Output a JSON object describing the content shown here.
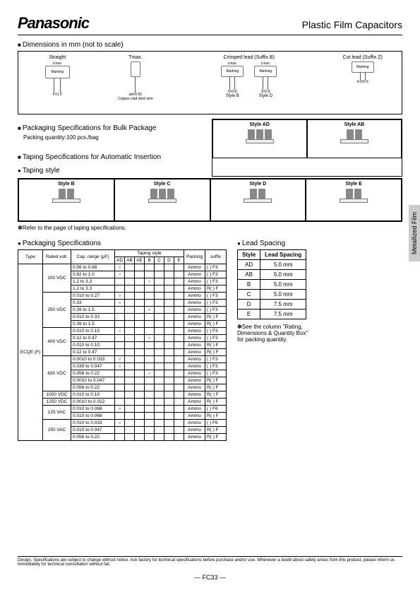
{
  "header": {
    "brand": "Panasonic",
    "title": "Plastic Film Capacitors"
  },
  "side_tab": "Metallized Film",
  "sections": {
    "dimensions": "Dimensions in mm (not to scale)",
    "packaging_bulk": "Packaging Specifications for Bulk Package",
    "packaging_qty": "Packing quantity:100 pcs./bag",
    "taping_spec": "Taping Specifications for Automatic Insertion",
    "taping_style": "Taping style",
    "taping_note": "Refer to the page of taping specifications.",
    "packaging_spec": "Packaging Specifications",
    "lead_spacing": "Lead Spacing"
  },
  "dim_labels": {
    "straight": "Straight",
    "tmax": "Tmax.",
    "crimped": "Crimped lead (Suffix B)",
    "cut": "Cut lead (Suffix Z)",
    "lmax": "Lmax.",
    "marking": "Marking",
    "hmax": "Hmax.",
    "gmax": "Gmax.",
    "f": "F±1.0",
    "min20": "20min.",
    "copper": "Copper-clad steel wire",
    "d": "ød±0.05",
    "styleB": "Style B",
    "styleD": "Style D",
    "s": "S±0.8",
    "l": "L±0.5",
    "tol": "4.0±0.5"
  },
  "style_labels": {
    "AD": "Style AD",
    "AB": "Style AB",
    "B": "Style B",
    "C": "Style C",
    "D": "Style D",
    "E": "Style E"
  },
  "pack_table": {
    "headers": {
      "type": "Type",
      "rated": "Rated volt.",
      "cap_range": "Cap. range (µF)",
      "taping_style": "Taping style",
      "packing": "Packing",
      "suffix": "suffix"
    },
    "tape_cols": [
      "AD",
      "AB",
      "AE",
      "B",
      "C",
      "D",
      "E"
    ],
    "type_val": "ECQE (F)",
    "rows": [
      {
        "volt": "100 VDC",
        "rows": [
          {
            "cap": "0.56 to 0.68",
            "ad": "○",
            "packing": "Ammo",
            "suffix": "(   ) F3"
          },
          {
            "cap": "0.82 to 1.0",
            "ad": "○",
            "packing": "Ammo",
            "suffix": "(   ) F3"
          },
          {
            "cap": "1.2 to 3.3",
            "b": "○",
            "packing": "Ammo",
            "suffix": "(   ) F3"
          },
          {
            "cap": "1.2 to 3.3",
            "packing": "Ammo",
            "suffix": "R(   ) F"
          }
        ]
      },
      {
        "volt": "250 VDC",
        "rows": [
          {
            "cap": "0.010 to 0.27",
            "ad": "○",
            "packing": "Ammo",
            "suffix": "(   ) F3"
          },
          {
            "cap": "0.33",
            "ad": "○",
            "packing": "Ammo",
            "suffix": "(   ) F3"
          },
          {
            "cap": "0.39 to 1.5",
            "b": "○",
            "packing": "Ammo",
            "suffix": "(   ) F3"
          },
          {
            "cap": "0.010 to 0.33",
            "packing": "Ammo",
            "suffix": "R(   ) F"
          },
          {
            "cap": "0.39 to 1.5",
            "packing": "Ammo",
            "suffix": "R(   ) F"
          }
        ]
      },
      {
        "volt": "400 VDC",
        "rows": [
          {
            "cap": "0.010 to 0.10",
            "ad": "○",
            "packing": "Ammo",
            "suffix": "(   ) F3"
          },
          {
            "cap": "0.12 to 0.47",
            "b": "○",
            "packing": "Ammo",
            "suffix": "(   ) F3"
          },
          {
            "cap": "0.010 to 0.10",
            "packing": "Ammo",
            "suffix": "R(   ) F"
          },
          {
            "cap": "0.12 to 0.47",
            "packing": "Ammo",
            "suffix": "R(   ) F"
          }
        ]
      },
      {
        "volt": "630 VDC",
        "rows": [
          {
            "cap": "0.0010 to 0.033",
            "ad": "○",
            "packing": "Ammo",
            "suffix": "(   ) F3"
          },
          {
            "cap": "0.039 to 0.047",
            "ad": "○",
            "packing": "Ammo",
            "suffix": "(   ) F3"
          },
          {
            "cap": "0.056 to 0.22",
            "b": "○",
            "packing": "Ammo",
            "suffix": "(   ) F3"
          },
          {
            "cap": "0.0010 to 0.047",
            "packing": "Ammo",
            "suffix": "R(   ) F"
          },
          {
            "cap": "0.056 to 0.22",
            "packing": "Ammo",
            "suffix": "R(   ) F"
          }
        ]
      },
      {
        "volt": "1000 VDC",
        "rows": [
          {
            "cap": "0.010 to 0.10",
            "packing": "Ammo",
            "suffix": "R(   ) F"
          }
        ]
      },
      {
        "volt": "1250 VDC",
        "rows": [
          {
            "cap": "0.0010 to 0.022",
            "packing": "Ammo",
            "suffix": "R(   ) F"
          }
        ]
      },
      {
        "volt": "125 VAC",
        "rows": [
          {
            "cap": "0.010 to 0.068",
            "ad": "○",
            "packing": "Ammo",
            "suffix": "(   ) F6"
          },
          {
            "cap": "0.010 to 0.068",
            "packing": "Ammo",
            "suffix": "R(   ) F"
          }
        ]
      },
      {
        "volt": "250 VAC",
        "rows": [
          {
            "cap": "0.010 to 0.033",
            "ad": "○",
            "packing": "Ammo",
            "suffix": "(   ) F6"
          },
          {
            "cap": "0.010 to 0.047",
            "packing": "Ammo",
            "suffix": "R(   ) F"
          },
          {
            "cap": "0.056 to 0.22",
            "packing": "Ammo",
            "suffix": "R(   ) F"
          }
        ]
      }
    ]
  },
  "lead_table": {
    "headers": {
      "style": "Style",
      "spacing": "Lead Spacing"
    },
    "rows": [
      {
        "s": "AD",
        "v": "5.0 mm"
      },
      {
        "s": "AB",
        "v": "5.0 mm"
      },
      {
        "s": "B",
        "v": "5.0 mm"
      },
      {
        "s": "C",
        "v": "5.0 mm"
      },
      {
        "s": "D",
        "v": "7.5 mm"
      },
      {
        "s": "E",
        "v": "7.5 mm"
      }
    ],
    "note": "See the column \"Rating, Dimensions & Quantity Box\" for packing quantity."
  },
  "footer": {
    "disclaimer": "Design, Specifications are subject to change without notice. Ask factory for technical specifications before purchase and/or use. Whenever a doubt about safety arises from this product, please inform us immediately for technical consultation without fail.",
    "page": "— FC33 —"
  }
}
